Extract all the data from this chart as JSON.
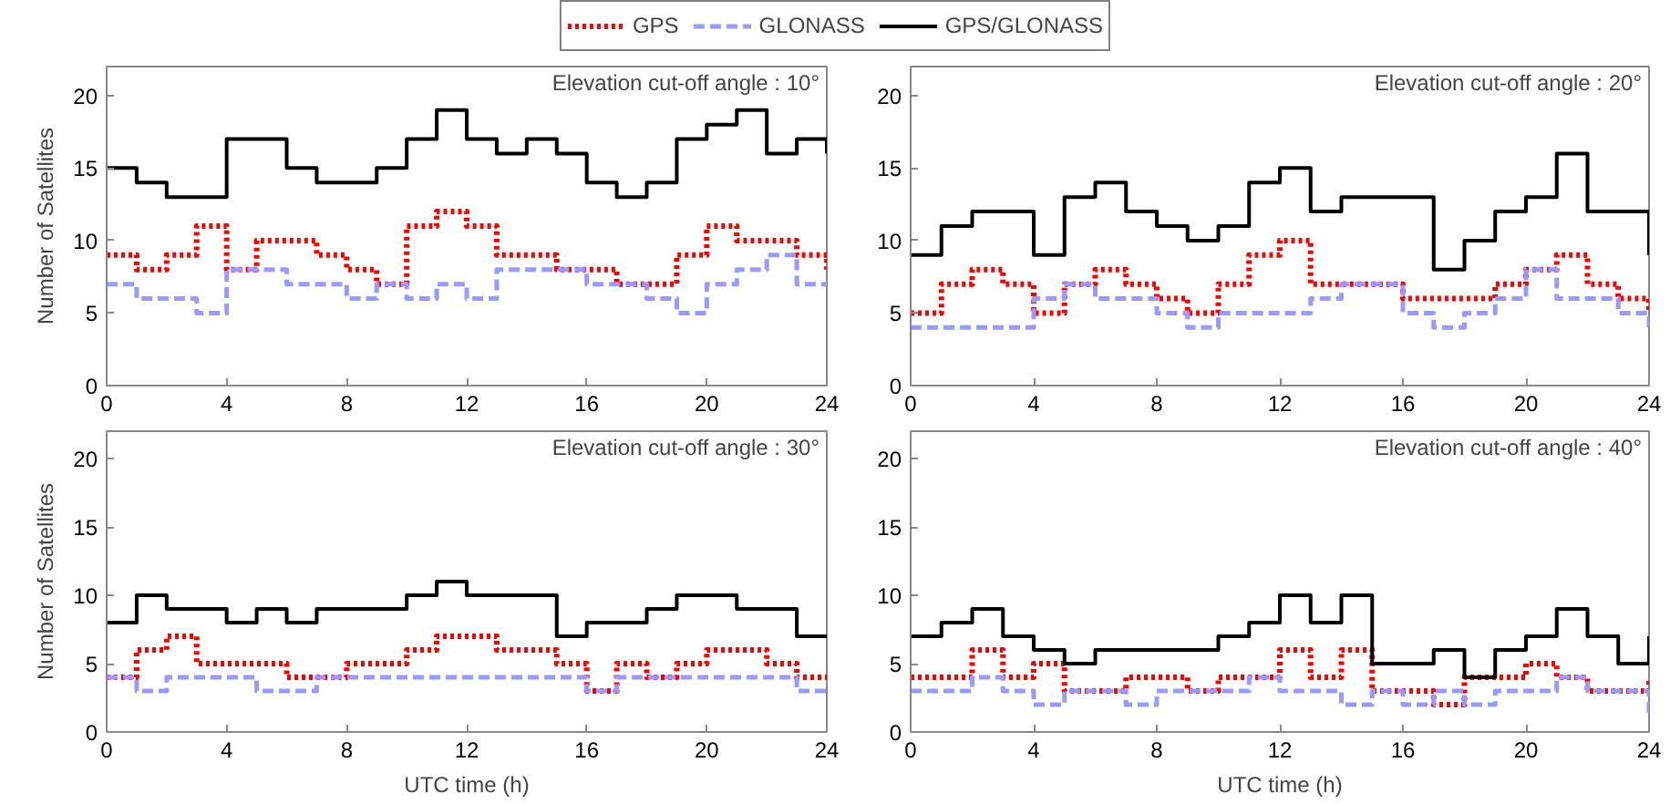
{
  "chart_data": [
    {
      "type": "step",
      "legend": "top",
      "ylabel": "Number of Satellites",
      "annotations": [
        "Elevation cut-off angle : 10°"
      ],
      "xlim": [
        0,
        24
      ],
      "ylim": [
        0,
        22
      ],
      "xticks": [
        0,
        4,
        8,
        12,
        16,
        20,
        24
      ],
      "yticks": [
        0,
        5,
        10,
        15,
        20
      ],
      "grid": false,
      "marker": "none",
      "x": [
        0,
        1,
        2,
        3,
        4,
        5,
        6,
        7,
        8,
        9,
        10,
        11,
        12,
        13,
        14,
        15,
        16,
        17,
        18,
        19,
        20,
        21,
        22,
        23,
        24
      ],
      "series": [
        {
          "name": "GPS",
          "color": "#ff0000",
          "line_style": "dotted",
          "values": [
            9,
            8,
            9,
            11,
            8,
            10,
            10,
            9,
            8,
            7,
            11,
            12,
            11,
            9,
            9,
            8,
            8,
            7,
            7,
            9,
            11,
            10,
            10,
            9,
            8
          ]
        },
        {
          "name": "GLONASS",
          "color": "#9999ff",
          "line_style": "dashed",
          "values": [
            7,
            6,
            6,
            5,
            8,
            8,
            7,
            7,
            6,
            7,
            6,
            7,
            6,
            8,
            8,
            8,
            7,
            7,
            6,
            5,
            7,
            8,
            9,
            7,
            7
          ]
        },
        {
          "name": "GPS/GLONASS",
          "color": "#000000",
          "line_style": "solid",
          "values": [
            15,
            14,
            13,
            13,
            17,
            17,
            15,
            14,
            14,
            15,
            17,
            19,
            17,
            16,
            17,
            16,
            14,
            13,
            14,
            17,
            18,
            19,
            16,
            17,
            16
          ]
        }
      ]
    },
    {
      "type": "step",
      "annotations": [
        "Elevation cut-off angle : 20°"
      ],
      "xlim": [
        0,
        24
      ],
      "ylim": [
        0,
        22
      ],
      "xticks": [
        0,
        4,
        8,
        12,
        16,
        20,
        24
      ],
      "yticks": [
        0,
        5,
        10,
        15,
        20
      ],
      "grid": false,
      "marker": "none",
      "x": [
        0,
        1,
        2,
        3,
        4,
        5,
        6,
        7,
        8,
        9,
        10,
        11,
        12,
        13,
        14,
        15,
        16,
        17,
        18,
        19,
        20,
        21,
        22,
        23,
        24
      ],
      "series": [
        {
          "color": "#ff0000",
          "line_style": "dotted",
          "values": [
            5,
            7,
            8,
            7,
            5,
            7,
            8,
            7,
            6,
            5,
            7,
            9,
            10,
            7,
            7,
            7,
            6,
            6,
            6,
            7,
            8,
            9,
            7,
            6,
            5
          ]
        },
        {
          "color": "#9999ff",
          "line_style": "dashed",
          "values": [
            4,
            4,
            4,
            4,
            6,
            7,
            6,
            6,
            5,
            4,
            5,
            5,
            5,
            6,
            7,
            7,
            5,
            4,
            5,
            6,
            8,
            6,
            6,
            5,
            4
          ]
        },
        {
          "color": "#000000",
          "line_style": "solid",
          "values": [
            9,
            11,
            12,
            12,
            9,
            13,
            14,
            12,
            11,
            10,
            11,
            14,
            15,
            12,
            13,
            13,
            13,
            8,
            10,
            12,
            13,
            16,
            12,
            12,
            9
          ]
        }
      ]
    },
    {
      "type": "step",
      "xlabel": "UTC time (h)",
      "ylabel": "Number of Satellites",
      "annotations": [
        "Elevation cut-off angle : 30°"
      ],
      "xlim": [
        0,
        24
      ],
      "ylim": [
        0,
        22
      ],
      "xticks": [
        0,
        4,
        8,
        12,
        16,
        20,
        24
      ],
      "yticks": [
        0,
        5,
        10,
        15,
        20
      ],
      "grid": false,
      "marker": "none",
      "x": [
        0,
        1,
        2,
        3,
        4,
        5,
        6,
        7,
        8,
        9,
        10,
        11,
        12,
        13,
        14,
        15,
        16,
        17,
        18,
        19,
        20,
        21,
        22,
        23,
        24
      ],
      "series": [
        {
          "color": "#ff0000",
          "line_style": "dotted",
          "values": [
            4,
            6,
            7,
            5,
            5,
            5,
            4,
            4,
            5,
            5,
            6,
            7,
            7,
            6,
            6,
            5,
            3,
            5,
            4,
            5,
            6,
            6,
            5,
            4,
            4
          ]
        },
        {
          "color": "#9999ff",
          "line_style": "dashed",
          "values": [
            4,
            3,
            4,
            4,
            4,
            3,
            3,
            4,
            4,
            4,
            4,
            4,
            4,
            4,
            4,
            4,
            3,
            4,
            4,
            4,
            4,
            4,
            4,
            3,
            3
          ]
        },
        {
          "color": "#000000",
          "line_style": "solid",
          "values": [
            8,
            10,
            9,
            9,
            8,
            9,
            8,
            9,
            9,
            9,
            10,
            11,
            10,
            10,
            10,
            7,
            8,
            8,
            9,
            10,
            10,
            9,
            9,
            7,
            7
          ]
        }
      ]
    },
    {
      "type": "step",
      "xlabel": "UTC time (h)",
      "annotations": [
        "Elevation cut-off angle : 40°"
      ],
      "xlim": [
        0,
        24
      ],
      "ylim": [
        0,
        22
      ],
      "xticks": [
        0,
        4,
        8,
        12,
        16,
        20,
        24
      ],
      "yticks": [
        0,
        5,
        10,
        15,
        20
      ],
      "grid": false,
      "marker": "none",
      "x": [
        0,
        1,
        2,
        3,
        4,
        5,
        6,
        7,
        8,
        9,
        10,
        11,
        12,
        13,
        14,
        15,
        16,
        17,
        18,
        19,
        20,
        21,
        22,
        23,
        24
      ],
      "series": [
        {
          "color": "#ff0000",
          "line_style": "dotted",
          "values": [
            4,
            4,
            6,
            4,
            5,
            3,
            3,
            4,
            4,
            3,
            4,
            4,
            6,
            4,
            6,
            3,
            3,
            2,
            4,
            4,
            5,
            4,
            3,
            3,
            4
          ]
        },
        {
          "color": "#9999ff",
          "line_style": "dashed",
          "values": [
            3,
            3,
            4,
            3,
            2,
            3,
            3,
            2,
            3,
            3,
            3,
            4,
            3,
            3,
            2,
            3,
            2,
            3,
            2,
            3,
            3,
            4,
            3,
            3,
            1
          ]
        },
        {
          "color": "#000000",
          "line_style": "solid",
          "values": [
            7,
            8,
            9,
            7,
            6,
            5,
            6,
            6,
            6,
            6,
            7,
            8,
            10,
            8,
            10,
            5,
            5,
            6,
            4,
            6,
            7,
            9,
            7,
            5,
            7
          ]
        }
      ]
    }
  ]
}
